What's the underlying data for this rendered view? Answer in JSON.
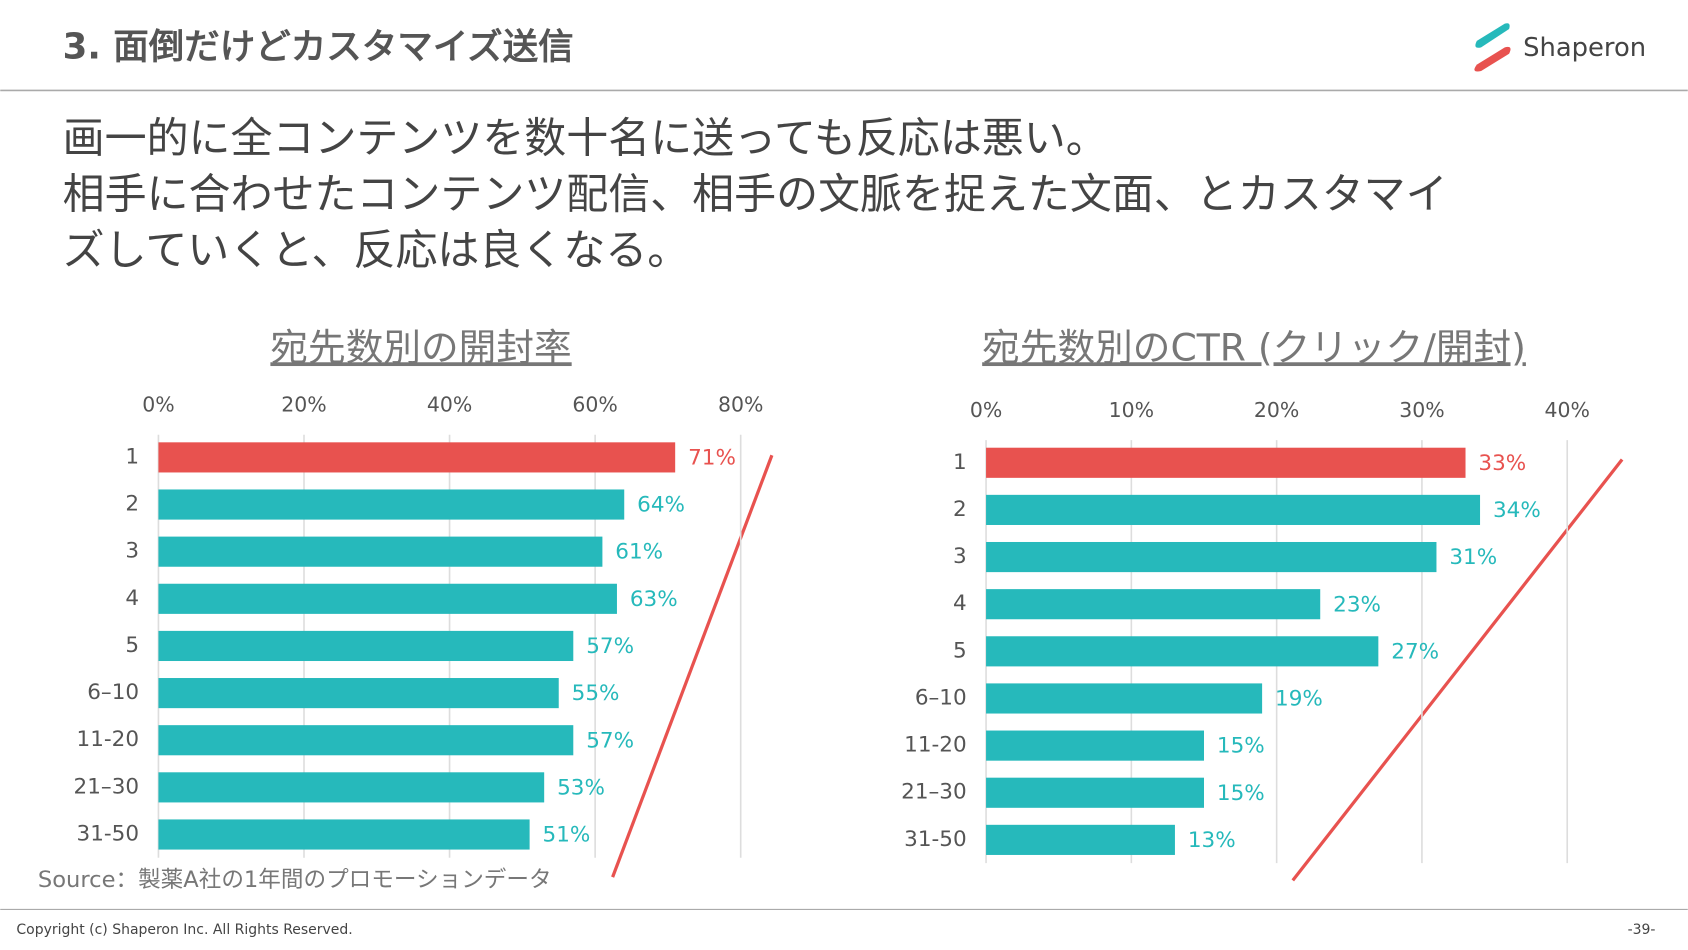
{
  "header": {
    "title": "3. 面倒だけどカスタマイズ送信",
    "logo": "Shaperon"
  },
  "body": {
    "lines": [
      "画一的に全コンテンツを数十名に送っても反応は悪い。",
      "相手に合わせたコンテンツ配信、相手の文脈を捉えた文面、とカスタマイ",
      "ズしていくと、反応は良くなる。"
    ]
  },
  "chart_data": [
    {
      "type": "bar",
      "orientation": "horizontal",
      "title": "宛先数別の開封率",
      "categories": [
        "1",
        "2",
        "3",
        "4",
        "5",
        "6–10",
        "11-20",
        "21–30",
        "31-50"
      ],
      "values": [
        71,
        64,
        61,
        63,
        57,
        55,
        57,
        53,
        51
      ],
      "value_labels": [
        "71%",
        "64%",
        "61%",
        "63%",
        "57%",
        "55%",
        "57%",
        "53%",
        "51%"
      ],
      "colors": [
        "#e8524f",
        "#26b9bb",
        "#26b9bb",
        "#26b9bb",
        "#26b9bb",
        "#26b9bb",
        "#26b9bb",
        "#26b9bb",
        "#26b9bb"
      ],
      "xlim": [
        0,
        80
      ],
      "xticks": [
        {
          "value": 0,
          "label": "0%"
        },
        {
          "value": 20,
          "label": "20%"
        },
        {
          "value": 40,
          "label": "40%"
        },
        {
          "value": 60,
          "label": "60%"
        },
        {
          "value": 80,
          "label": "80%"
        }
      ],
      "grid": true
    },
    {
      "type": "bar",
      "orientation": "horizontal",
      "title": "宛先数別のCTR (クリック/開封)",
      "categories": [
        "1",
        "2",
        "3",
        "4",
        "5",
        "6–10",
        "11-20",
        "21–30",
        "31-50"
      ],
      "values": [
        33,
        34,
        31,
        23,
        27,
        19,
        15,
        15,
        13
      ],
      "value_labels": [
        "33%",
        "34%",
        "31%",
        "23%",
        "27%",
        "19%",
        "15%",
        "15%",
        "13%"
      ],
      "colors": [
        "#e8524f",
        "#26b9bb",
        "#26b9bb",
        "#26b9bb",
        "#26b9bb",
        "#26b9bb",
        "#26b9bb",
        "#26b9bb",
        "#26b9bb"
      ],
      "xlim": [
        0,
        40
      ],
      "xticks": [
        {
          "value": 0,
          "label": "0%"
        },
        {
          "value": 10,
          "label": "10%"
        },
        {
          "value": 20,
          "label": "20%"
        },
        {
          "value": 30,
          "label": "30%"
        },
        {
          "value": 40,
          "label": "40%"
        }
      ],
      "grid": true
    }
  ],
  "source": "Source：製薬A社の1年間のプロモーションデータ",
  "footer": {
    "copyright": "Copyright (c) Shaperon Inc.  All Rights Reserved.",
    "page": "-39-"
  }
}
